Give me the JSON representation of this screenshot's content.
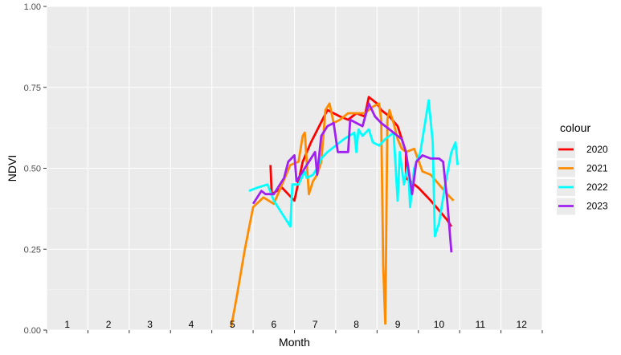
{
  "chart_data": {
    "type": "line",
    "xlabel": "Month",
    "ylabel": "NDVI",
    "ylim": [
      0,
      1
    ],
    "xlim": [
      0.5,
      12.5
    ],
    "y_ticks": [
      "0.00",
      "0.25",
      "0.50",
      "0.75",
      "1.00"
    ],
    "y_tick_values": [
      0,
      0.25,
      0.5,
      0.75,
      1.0
    ],
    "month_labels": [
      "1",
      "2",
      "3",
      "4",
      "5",
      "6",
      "7",
      "8",
      "9",
      "10",
      "11",
      "12"
    ],
    "grid": true,
    "background": "#ebebeb",
    "legend": {
      "title": "colour",
      "placement": "right",
      "entries": [
        "2020",
        "2021",
        "2022",
        "2023"
      ]
    },
    "series": [
      {
        "name": "2020",
        "color": "#ff0000",
        "points": [
          [
            5.92,
            0.51
          ],
          [
            5.95,
            0.42
          ],
          [
            6.2,
            0.44
          ],
          [
            6.5,
            0.4
          ],
          [
            6.7,
            0.52
          ],
          [
            6.9,
            0.58
          ],
          [
            7.1,
            0.63
          ],
          [
            7.3,
            0.68
          ],
          [
            7.6,
            0.66
          ],
          [
            7.8,
            0.65
          ],
          [
            8.0,
            0.67
          ],
          [
            8.2,
            0.66
          ],
          [
            8.3,
            0.72
          ],
          [
            8.5,
            0.7
          ],
          [
            8.6,
            0.68
          ],
          [
            8.8,
            0.66
          ],
          [
            9.0,
            0.63
          ],
          [
            9.2,
            0.55
          ],
          [
            9.2,
            0.47
          ],
          [
            9.5,
            0.44
          ],
          [
            9.8,
            0.4
          ],
          [
            10.0,
            0.37
          ],
          [
            10.2,
            0.34
          ],
          [
            10.3,
            0.32
          ]
        ]
      },
      {
        "name": "2021",
        "color": "#ff8c00",
        "points": [
          [
            4.97,
            0.01
          ],
          [
            5.1,
            0.1
          ],
          [
            5.3,
            0.25
          ],
          [
            5.5,
            0.38
          ],
          [
            5.75,
            0.41
          ],
          [
            6.0,
            0.39
          ],
          [
            6.2,
            0.45
          ],
          [
            6.4,
            0.51
          ],
          [
            6.6,
            0.52
          ],
          [
            6.7,
            0.6
          ],
          [
            6.75,
            0.61
          ],
          [
            6.85,
            0.42
          ],
          [
            6.95,
            0.46
          ],
          [
            7.05,
            0.48
          ],
          [
            7.15,
            0.52
          ],
          [
            7.25,
            0.68
          ],
          [
            7.35,
            0.7
          ],
          [
            7.45,
            0.64
          ],
          [
            7.6,
            0.65
          ],
          [
            7.8,
            0.67
          ],
          [
            8.0,
            0.67
          ],
          [
            8.2,
            0.67
          ],
          [
            8.4,
            0.69
          ],
          [
            8.55,
            0.7
          ],
          [
            8.6,
            0.65
          ],
          [
            8.65,
            0.2
          ],
          [
            8.7,
            0.02
          ],
          [
            8.72,
            0.25
          ],
          [
            8.75,
            0.65
          ],
          [
            8.8,
            0.68
          ],
          [
            8.9,
            0.64
          ],
          [
            9.0,
            0.59
          ],
          [
            9.1,
            0.56
          ],
          [
            9.2,
            0.55
          ],
          [
            9.4,
            0.56
          ],
          [
            9.6,
            0.49
          ],
          [
            9.8,
            0.48
          ],
          [
            10.0,
            0.45
          ],
          [
            10.2,
            0.42
          ],
          [
            10.35,
            0.4
          ]
        ]
      },
      {
        "name": "2022",
        "color": "#00ffff",
        "points": [
          [
            5.4,
            0.43
          ],
          [
            5.6,
            0.44
          ],
          [
            5.85,
            0.45
          ],
          [
            6.0,
            0.4
          ],
          [
            6.2,
            0.36
          ],
          [
            6.4,
            0.32
          ],
          [
            6.45,
            0.45
          ],
          [
            6.6,
            0.45
          ],
          [
            6.75,
            0.49
          ],
          [
            6.8,
            0.47
          ],
          [
            6.95,
            0.48
          ],
          [
            7.05,
            0.5
          ],
          [
            7.15,
            0.53
          ],
          [
            7.3,
            0.55
          ],
          [
            7.5,
            0.57
          ],
          [
            7.7,
            0.59
          ],
          [
            7.95,
            0.61
          ],
          [
            8.0,
            0.55
          ],
          [
            8.05,
            0.62
          ],
          [
            8.15,
            0.6
          ],
          [
            8.3,
            0.62
          ],
          [
            8.4,
            0.58
          ],
          [
            8.55,
            0.57
          ],
          [
            8.7,
            0.59
          ],
          [
            8.9,
            0.61
          ],
          [
            9.0,
            0.4
          ],
          [
            9.05,
            0.55
          ],
          [
            9.15,
            0.45
          ],
          [
            9.25,
            0.51
          ],
          [
            9.3,
            0.38
          ],
          [
            9.4,
            0.5
          ],
          [
            9.55,
            0.55
          ],
          [
            9.75,
            0.71
          ],
          [
            9.85,
            0.58
          ],
          [
            9.9,
            0.29
          ],
          [
            10.0,
            0.33
          ],
          [
            10.15,
            0.45
          ],
          [
            10.3,
            0.55
          ],
          [
            10.4,
            0.58
          ],
          [
            10.45,
            0.51
          ]
        ]
      },
      {
        "name": "2023",
        "color": "#a020f0",
        "points": [
          [
            5.5,
            0.39
          ],
          [
            5.7,
            0.43
          ],
          [
            5.8,
            0.42
          ],
          [
            6.0,
            0.42
          ],
          [
            6.1,
            0.44
          ],
          [
            6.25,
            0.47
          ],
          [
            6.35,
            0.52
          ],
          [
            6.5,
            0.54
          ],
          [
            6.55,
            0.46
          ],
          [
            6.7,
            0.49
          ],
          [
            6.85,
            0.52
          ],
          [
            7.0,
            0.55
          ],
          [
            7.05,
            0.48
          ],
          [
            7.15,
            0.6
          ],
          [
            7.3,
            0.63
          ],
          [
            7.45,
            0.64
          ],
          [
            7.55,
            0.55
          ],
          [
            7.7,
            0.55
          ],
          [
            7.8,
            0.55
          ],
          [
            7.85,
            0.65
          ],
          [
            8.0,
            0.64
          ],
          [
            8.15,
            0.63
          ],
          [
            8.3,
            0.7
          ],
          [
            8.45,
            0.66
          ],
          [
            8.6,
            0.64
          ],
          [
            8.8,
            0.62
          ],
          [
            9.0,
            0.6
          ],
          [
            9.1,
            0.59
          ],
          [
            9.2,
            0.55
          ],
          [
            9.35,
            0.42
          ],
          [
            9.45,
            0.52
          ],
          [
            9.6,
            0.54
          ],
          [
            9.8,
            0.53
          ],
          [
            10.0,
            0.53
          ],
          [
            10.1,
            0.52
          ],
          [
            10.2,
            0.4
          ],
          [
            10.3,
            0.24
          ]
        ]
      }
    ]
  }
}
